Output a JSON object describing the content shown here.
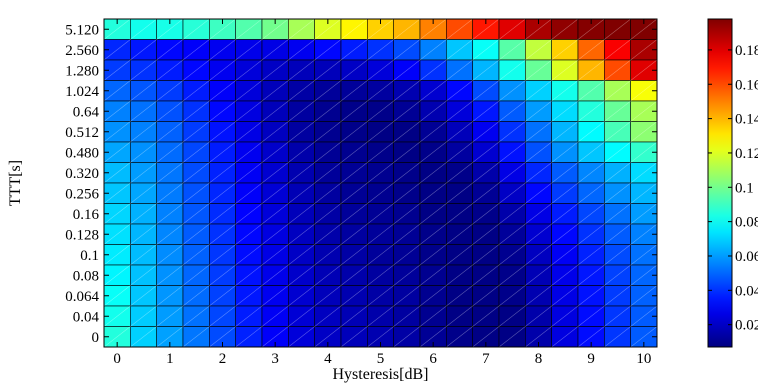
{
  "chart_data": {
    "type": "heatmap",
    "title": "",
    "xlabel": "Hysteresis[dB]",
    "ylabel": "TTT[s]",
    "x_categories": [
      "0",
      "0.5",
      "1",
      "1.5",
      "2",
      "2.5",
      "3",
      "3.5",
      "4",
      "4.5",
      "5",
      "5.5",
      "6",
      "6.5",
      "7",
      "7.5",
      "8",
      "8.5",
      "9",
      "9.5",
      "10"
    ],
    "x_tick_labels": [
      "0",
      "1",
      "2",
      "3",
      "4",
      "5",
      "6",
      "7",
      "8",
      "9",
      "10"
    ],
    "y_categories_top_to_bottom": [
      "5.120",
      "2.560",
      "1.280",
      "1.024",
      "0.64",
      "0.512",
      "0.480",
      "0.320",
      "0.256",
      "0.16",
      "0.128",
      "0.1",
      "0.08",
      "0.064",
      "0.04",
      "0"
    ],
    "colorbar": {
      "colormap": "jet",
      "range": [
        0.007,
        0.198
      ],
      "tick_labels": [
        "0.02",
        "0.04",
        "0.06",
        "0.08",
        "0.1",
        "0.12",
        "0.14",
        "0.16",
        "0.18"
      ],
      "tick_values": [
        0.02,
        0.04,
        0.06,
        0.08,
        0.1,
        0.12,
        0.14,
        0.16,
        0.18
      ]
    },
    "values_top_to_bottom": [
      [
        0.085,
        0.082,
        0.083,
        0.086,
        0.09,
        0.094,
        0.1,
        0.11,
        0.12,
        0.128,
        0.135,
        0.14,
        0.15,
        0.16,
        0.17,
        0.18,
        0.19,
        0.195,
        0.197,
        0.198,
        0.198
      ],
      [
        0.038,
        0.035,
        0.032,
        0.03,
        0.028,
        0.027,
        0.026,
        0.028,
        0.032,
        0.036,
        0.04,
        0.045,
        0.055,
        0.068,
        0.08,
        0.095,
        0.115,
        0.135,
        0.155,
        0.175,
        0.19
      ],
      [
        0.042,
        0.04,
        0.036,
        0.032,
        0.028,
        0.024,
        0.02,
        0.018,
        0.018,
        0.02,
        0.024,
        0.03,
        0.04,
        0.052,
        0.065,
        0.082,
        0.098,
        0.12,
        0.14,
        0.16,
        0.18
      ],
      [
        0.05,
        0.047,
        0.042,
        0.036,
        0.03,
        0.024,
        0.018,
        0.014,
        0.012,
        0.012,
        0.013,
        0.016,
        0.022,
        0.032,
        0.045,
        0.058,
        0.07,
        0.082,
        0.094,
        0.11,
        0.125
      ],
      [
        0.055,
        0.052,
        0.046,
        0.04,
        0.032,
        0.025,
        0.018,
        0.013,
        0.01,
        0.009,
        0.009,
        0.011,
        0.016,
        0.024,
        0.035,
        0.048,
        0.06,
        0.072,
        0.085,
        0.098,
        0.11
      ],
      [
        0.058,
        0.055,
        0.049,
        0.042,
        0.034,
        0.026,
        0.019,
        0.013,
        0.01,
        0.009,
        0.008,
        0.008,
        0.011,
        0.018,
        0.028,
        0.04,
        0.052,
        0.065,
        0.078,
        0.092,
        0.105
      ],
      [
        0.062,
        0.058,
        0.051,
        0.044,
        0.036,
        0.028,
        0.021,
        0.015,
        0.011,
        0.01,
        0.009,
        0.008,
        0.009,
        0.013,
        0.022,
        0.034,
        0.046,
        0.058,
        0.068,
        0.078,
        0.088
      ],
      [
        0.066,
        0.06,
        0.053,
        0.045,
        0.037,
        0.029,
        0.022,
        0.016,
        0.012,
        0.011,
        0.01,
        0.009,
        0.008,
        0.009,
        0.015,
        0.026,
        0.038,
        0.048,
        0.056,
        0.064,
        0.072
      ],
      [
        0.068,
        0.062,
        0.054,
        0.046,
        0.038,
        0.03,
        0.023,
        0.017,
        0.013,
        0.011,
        0.01,
        0.009,
        0.008,
        0.008,
        0.011,
        0.02,
        0.032,
        0.042,
        0.05,
        0.058,
        0.065
      ],
      [
        0.071,
        0.064,
        0.055,
        0.047,
        0.039,
        0.031,
        0.024,
        0.018,
        0.014,
        0.012,
        0.011,
        0.01,
        0.008,
        0.008,
        0.009,
        0.015,
        0.026,
        0.036,
        0.044,
        0.052,
        0.06
      ],
      [
        0.073,
        0.065,
        0.056,
        0.048,
        0.04,
        0.032,
        0.025,
        0.019,
        0.015,
        0.013,
        0.012,
        0.011,
        0.009,
        0.008,
        0.008,
        0.012,
        0.022,
        0.032,
        0.04,
        0.048,
        0.055
      ],
      [
        0.075,
        0.066,
        0.057,
        0.049,
        0.041,
        0.033,
        0.026,
        0.02,
        0.016,
        0.014,
        0.012,
        0.011,
        0.009,
        0.008,
        0.008,
        0.01,
        0.019,
        0.029,
        0.037,
        0.045,
        0.052
      ],
      [
        0.077,
        0.067,
        0.058,
        0.05,
        0.042,
        0.034,
        0.027,
        0.021,
        0.017,
        0.015,
        0.013,
        0.012,
        0.01,
        0.008,
        0.008,
        0.009,
        0.017,
        0.027,
        0.035,
        0.043,
        0.05
      ],
      [
        0.08,
        0.068,
        0.059,
        0.051,
        0.043,
        0.035,
        0.028,
        0.022,
        0.018,
        0.016,
        0.014,
        0.013,
        0.01,
        0.008,
        0.008,
        0.009,
        0.016,
        0.026,
        0.034,
        0.042,
        0.049
      ],
      [
        0.082,
        0.069,
        0.06,
        0.052,
        0.044,
        0.036,
        0.029,
        0.023,
        0.019,
        0.017,
        0.015,
        0.013,
        0.01,
        0.008,
        0.008,
        0.008,
        0.015,
        0.025,
        0.033,
        0.041,
        0.048
      ],
      [
        0.085,
        0.07,
        0.061,
        0.053,
        0.045,
        0.037,
        0.03,
        0.024,
        0.02,
        0.018,
        0.016,
        0.014,
        0.011,
        0.009,
        0.008,
        0.008,
        0.015,
        0.025,
        0.033,
        0.041,
        0.048
      ]
    ]
  }
}
